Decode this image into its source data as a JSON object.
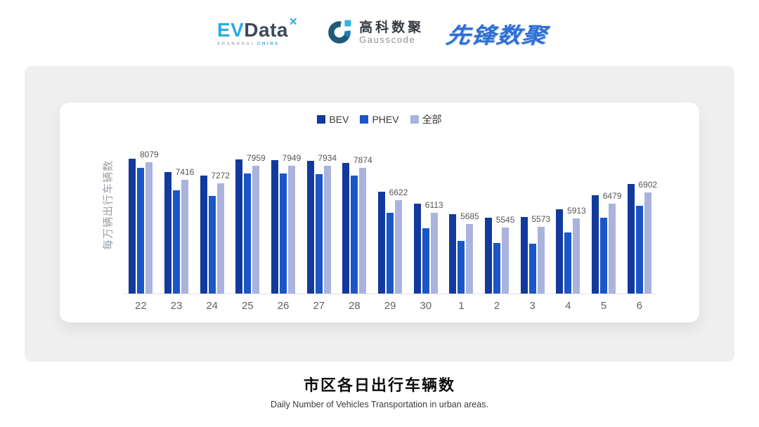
{
  "header": {
    "logos": {
      "evdata": {
        "ev": "EV",
        "data": "Data",
        "mark": "✕",
        "sub_left": "SHANGHAI",
        "sub_right": "CHINA"
      },
      "gausscode": {
        "cn": "高科数聚",
        "en": "Gausscode"
      },
      "xianfeng": {
        "text": "先锋数聚"
      }
    }
  },
  "chart_data": {
    "type": "bar",
    "title": "市区各日出行车辆数",
    "subtitle": "Daily Number of Vehicles Transportation in urban areas.",
    "ylabel": "每万辆出行车辆数",
    "categories": [
      "22",
      "23",
      "24",
      "25",
      "26",
      "27",
      "28",
      "29",
      "30",
      "1",
      "2",
      "3",
      "4",
      "5",
      "6"
    ],
    "series": [
      {
        "name": "BEV",
        "color": "#123a9d",
        "estimated": true,
        "values": [
          8230,
          7700,
          7560,
          8180,
          8170,
          8140,
          8060,
          6950,
          6470,
          6070,
          5930,
          5950,
          6250,
          6800,
          7240
        ]
      },
      {
        "name": "PHEV",
        "color": "#1b56c8",
        "estimated": true,
        "values": [
          7870,
          6990,
          6790,
          7660,
          7650,
          7630,
          7560,
          6120,
          5520,
          5050,
          4950,
          4940,
          5360,
          5940,
          6390
        ]
      },
      {
        "name": "全部",
        "color": "#a9b3de",
        "labeled": true,
        "values": [
          8079,
          7416,
          7272,
          7959,
          7949,
          7934,
          7874,
          6622,
          6113,
          5685,
          5545,
          5573,
          5913,
          6479,
          6902
        ]
      }
    ],
    "data_labels_series": "全部",
    "ylim": [
      3000,
      8600
    ],
    "grid": false,
    "legend_position": "top",
    "colors": {
      "axis_line": "#e2e2e8",
      "tick_text": "#5f6368",
      "label_text": "#555555"
    }
  }
}
